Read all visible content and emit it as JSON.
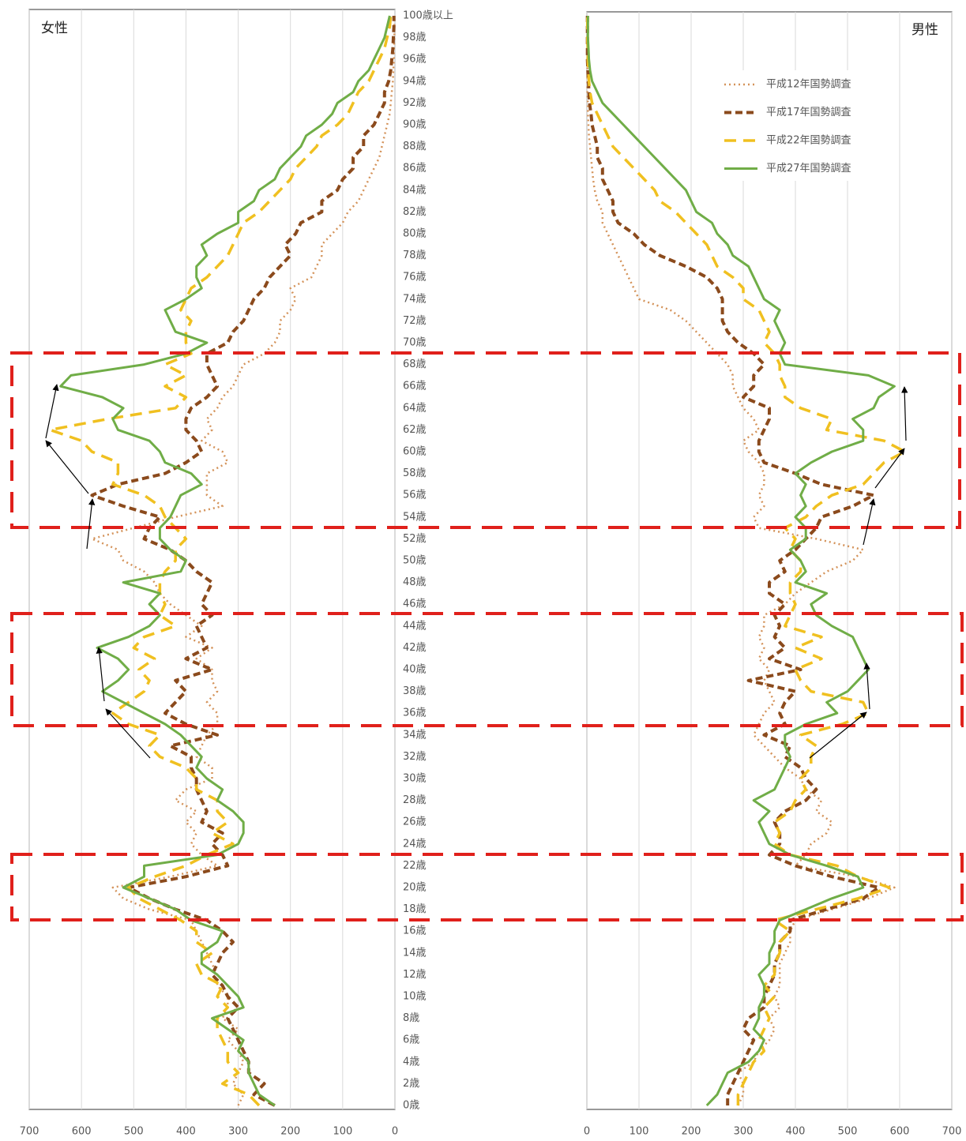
{
  "chart_data": [
    {
      "type": "line",
      "orientation": "horizontal",
      "title": "女性",
      "categories": [
        "0歳",
        null,
        "2歳",
        null,
        "4歳",
        null,
        "6歳",
        null,
        "8歳",
        null,
        "10歳",
        null,
        "12歳",
        null,
        "14歳",
        null,
        "16歳",
        null,
        "18歳",
        null,
        "20歳",
        null,
        "22歳",
        null,
        "24歳",
        null,
        "26歳",
        null,
        "28歳",
        null,
        "30歳",
        null,
        "32歳",
        null,
        "34歳",
        null,
        "36歳",
        null,
        "38歳",
        null,
        "40歳",
        null,
        "42歳",
        null,
        "44歳",
        null,
        "46歳",
        null,
        "48歳",
        null,
        "50歳",
        null,
        "52歳",
        null,
        "54歳",
        null,
        "56歳",
        null,
        "58歳",
        null,
        "60歳",
        null,
        "62歳",
        null,
        "64歳",
        null,
        "66歳",
        null,
        "68歳",
        null,
        "70歳",
        null,
        "72歳",
        null,
        "74歳",
        null,
        "76歳",
        null,
        "78歳",
        null,
        "80歳",
        null,
        "82歳",
        null,
        "84歳",
        null,
        "86歳",
        null,
        "88歳",
        null,
        "90歳",
        null,
        "92歳",
        null,
        "94歳",
        null,
        "96歳",
        null,
        "98歳",
        null,
        "100歳以上"
      ],
      "xlim": [
        700,
        0
      ],
      "xticks": [
        700,
        600,
        500,
        400,
        300,
        200,
        100,
        0
      ],
      "grid": true,
      "series": [
        {
          "color": "#d4935a",
          "dash": "dotted",
          "values": [
            300,
            290,
            310,
            300,
            290,
            300,
            320,
            300,
            330,
            320,
            320,
            340,
            340,
            350,
            360,
            370,
            380,
            390,
            470,
            520,
            540,
            430,
            340,
            370,
            390,
            380,
            400,
            380,
            420,
            400,
            350,
            350,
            380,
            370,
            360,
            340,
            340,
            360,
            340,
            350,
            350,
            380,
            350,
            400,
            370,
            400,
            430,
            450,
            460,
            480,
            520,
            530,
            580,
            500,
            420,
            330,
            360,
            360,
            360,
            320,
            330,
            370,
            350,
            360,
            340,
            330,
            310,
            300,
            290,
            250,
            230,
            220,
            220,
            200,
            190,
            200,
            160,
            150,
            140,
            140,
            120,
            100,
            90,
            70,
            60,
            50,
            40,
            30,
            25,
            20,
            15,
            10,
            8,
            6,
            4,
            3,
            2,
            2,
            1,
            1,
            1
          ]
        },
        {
          "color": "#8b4a1c",
          "dash": "dashed",
          "values": [
            230,
            270,
            250,
            280,
            280,
            290,
            300,
            310,
            320,
            300,
            320,
            330,
            350,
            340,
            330,
            310,
            330,
            360,
            420,
            470,
            510,
            400,
            320,
            330,
            350,
            330,
            370,
            360,
            370,
            380,
            380,
            390,
            390,
            430,
            340,
            400,
            440,
            420,
            400,
            420,
            350,
            400,
            360,
            370,
            380,
            350,
            370,
            360,
            350,
            380,
            400,
            430,
            480,
            470,
            450,
            520,
            580,
            530,
            440,
            400,
            370,
            380,
            400,
            400,
            390,
            360,
            340,
            350,
            360,
            360,
            320,
            310,
            290,
            280,
            270,
            250,
            240,
            220,
            200,
            210,
            190,
            180,
            140,
            140,
            110,
            100,
            80,
            80,
            60,
            60,
            40,
            30,
            20,
            20,
            12,
            8,
            6,
            4,
            3,
            2,
            2
          ]
        },
        {
          "color": "#f0c020",
          "dash": "long-dashed",
          "values": [
            260,
            280,
            330,
            300,
            320,
            320,
            330,
            340,
            340,
            320,
            340,
            330,
            370,
            380,
            350,
            380,
            380,
            410,
            450,
            490,
            510,
            460,
            400,
            360,
            310,
            350,
            320,
            340,
            340,
            380,
            380,
            400,
            450,
            470,
            450,
            510,
            540,
            510,
            480,
            470,
            490,
            460,
            500,
            480,
            420,
            450,
            440,
            450,
            450,
            440,
            420,
            420,
            400,
            420,
            440,
            450,
            480,
            540,
            530,
            530,
            580,
            600,
            660,
            550,
            420,
            400,
            440,
            400,
            440,
            390,
            400,
            400,
            390,
            410,
            400,
            390,
            360,
            340,
            320,
            310,
            300,
            290,
            260,
            240,
            220,
            200,
            190,
            170,
            150,
            140,
            110,
            90,
            80,
            70,
            50,
            40,
            30,
            20,
            15,
            10,
            8
          ]
        },
        {
          "color": "#70ad47",
          "dash": "solid",
          "values": [
            230,
            260,
            270,
            280,
            280,
            300,
            290,
            320,
            350,
            290,
            300,
            320,
            340,
            370,
            370,
            340,
            330,
            390,
            420,
            470,
            520,
            480,
            480,
            340,
            300,
            290,
            290,
            310,
            340,
            330,
            360,
            380,
            370,
            390,
            410,
            440,
            480,
            520,
            560,
            530,
            510,
            530,
            570,
            510,
            470,
            450,
            470,
            450,
            520,
            410,
            400,
            430,
            450,
            450,
            430,
            420,
            410,
            370,
            390,
            440,
            450,
            470,
            530,
            540,
            520,
            560,
            640,
            620,
            480,
            400,
            360,
            420,
            430,
            440,
            400,
            370,
            380,
            380,
            360,
            370,
            340,
            300,
            300,
            270,
            260,
            230,
            220,
            200,
            180,
            170,
            140,
            120,
            110,
            80,
            70,
            50,
            40,
            30,
            20,
            15,
            10
          ]
        }
      ]
    },
    {
      "type": "line",
      "orientation": "horizontal",
      "title": "男性",
      "xlim": [
        0,
        700
      ],
      "xticks": [
        0,
        100,
        200,
        300,
        400,
        500,
        600,
        700
      ],
      "grid": true,
      "legend": "upper right",
      "series": [
        {
          "name": "平成12年国勢調査",
          "color": "#d4935a",
          "dash": "dotted",
          "values": [
            290,
            300,
            300,
            290,
            320,
            330,
            350,
            360,
            350,
            370,
            360,
            370,
            370,
            370,
            380,
            390,
            390,
            400,
            470,
            540,
            590,
            520,
            400,
            420,
            430,
            460,
            470,
            440,
            450,
            420,
            410,
            380,
            360,
            340,
            320,
            330,
            340,
            360,
            350,
            340,
            350,
            330,
            340,
            330,
            340,
            340,
            380,
            400,
            430,
            460,
            510,
            530,
            440,
            330,
            320,
            340,
            330,
            340,
            340,
            330,
            310,
            300,
            330,
            320,
            300,
            290,
            280,
            280,
            270,
            250,
            230,
            210,
            190,
            160,
            100,
            90,
            80,
            70,
            60,
            50,
            40,
            30,
            30,
            20,
            15,
            12,
            10,
            8,
            6,
            4,
            3,
            2,
            2,
            1,
            1,
            1,
            1,
            1,
            1,
            1,
            1
          ]
        },
        {
          "name": "平成17年国勢調査",
          "color": "#8b4a1c",
          "dash": "dashed",
          "values": [
            270,
            270,
            280,
            290,
            300,
            310,
            320,
            300,
            310,
            340,
            340,
            350,
            360,
            360,
            370,
            370,
            390,
            390,
            460,
            530,
            560,
            470,
            400,
            350,
            370,
            370,
            360,
            380,
            420,
            440,
            420,
            410,
            380,
            390,
            340,
            380,
            370,
            380,
            400,
            310,
            410,
            350,
            380,
            360,
            370,
            360,
            380,
            350,
            350,
            380,
            370,
            400,
            420,
            440,
            450,
            510,
            550,
            450,
            400,
            340,
            330,
            330,
            340,
            350,
            350,
            300,
            320,
            320,
            340,
            320,
            290,
            270,
            260,
            260,
            260,
            250,
            230,
            190,
            140,
            110,
            90,
            60,
            50,
            50,
            40,
            30,
            30,
            20,
            20,
            15,
            10,
            8,
            5,
            4,
            3,
            2,
            1,
            1,
            1,
            1,
            1
          ]
        },
        {
          "name": "平成22年国勢調査",
          "color": "#f0c020",
          "dash": "long-dashed",
          "values": [
            290,
            290,
            300,
            310,
            320,
            340,
            330,
            340,
            350,
            340,
            360,
            340,
            360,
            360,
            370,
            370,
            390,
            360,
            440,
            520,
            580,
            520,
            480,
            390,
            360,
            370,
            360,
            390,
            400,
            420,
            410,
            430,
            430,
            440,
            410,
            490,
            540,
            530,
            430,
            410,
            400,
            450,
            400,
            450,
            380,
            390,
            400,
            390,
            390,
            410,
            410,
            390,
            400,
            380,
            420,
            440,
            470,
            530,
            550,
            570,
            610,
            570,
            460,
            470,
            410,
            380,
            380,
            370,
            370,
            360,
            340,
            350,
            340,
            330,
            300,
            300,
            280,
            250,
            240,
            230,
            210,
            190,
            170,
            140,
            130,
            110,
            90,
            70,
            50,
            40,
            30,
            20,
            10,
            6,
            4,
            3,
            2,
            2,
            1,
            1,
            1
          ]
        },
        {
          "name": "平成27年国勢調査",
          "color": "#70ad47",
          "dash": "solid",
          "values": [
            230,
            250,
            260,
            270,
            310,
            330,
            340,
            320,
            330,
            330,
            340,
            340,
            330,
            350,
            350,
            360,
            360,
            370,
            420,
            470,
            530,
            520,
            460,
            390,
            350,
            340,
            330,
            350,
            320,
            360,
            370,
            380,
            390,
            380,
            380,
            420,
            480,
            460,
            500,
            520,
            540,
            530,
            520,
            510,
            470,
            440,
            430,
            460,
            400,
            420,
            410,
            390,
            420,
            420,
            400,
            420,
            410,
            420,
            400,
            430,
            470,
            530,
            530,
            510,
            550,
            560,
            590,
            540,
            380,
            370,
            380,
            370,
            360,
            370,
            340,
            330,
            320,
            310,
            280,
            270,
            250,
            240,
            210,
            200,
            190,
            170,
            150,
            130,
            110,
            90,
            70,
            50,
            30,
            20,
            10,
            6,
            4,
            3,
            2,
            2,
            2
          ]
        }
      ]
    }
  ]
}
